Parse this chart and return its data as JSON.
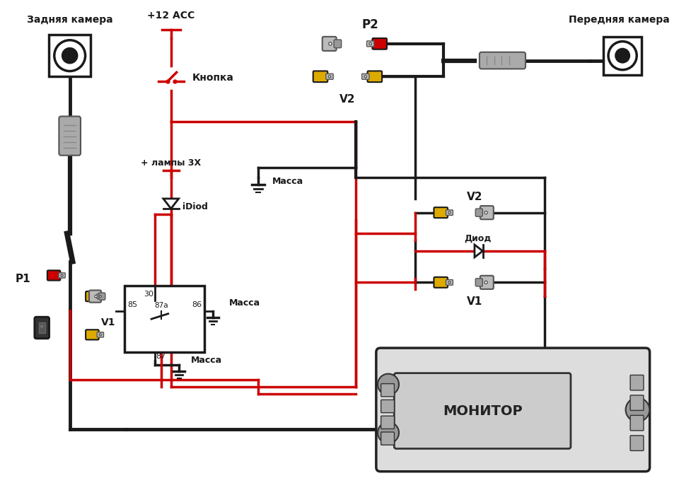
{
  "bg_color": "#ffffff",
  "labels": {
    "rear_camera": "Задняя камера",
    "front_camera": "Передняя камера",
    "plus12acc": "+12 ACC",
    "knopka": "Кнопка",
    "lampy3x": "+ лампы 3Х",
    "idiod": "iDiod",
    "massa1": "Масса",
    "massa2": "Масса",
    "massa3": "Масса",
    "p1": "P1",
    "p2": "P2",
    "v1_left": "V1",
    "v2_top": "V2",
    "v2_mid": "V2",
    "v1_bot": "V1",
    "diod": "Диод",
    "monitor": "МОНИТОР",
    "relay_30": "30",
    "relay_85": "85",
    "relay_87a": "87a",
    "relay_86": "86",
    "relay_87": "87"
  },
  "colors": {
    "red": "#cc0000",
    "black": "#1a1a1a",
    "yellow": "#ddaa00",
    "white": "#ffffff",
    "gray": "#888888",
    "light_gray": "#bbbbbb",
    "med_gray": "#999999",
    "dark_gray": "#555555",
    "cable_gray": "#aaaaaa"
  }
}
